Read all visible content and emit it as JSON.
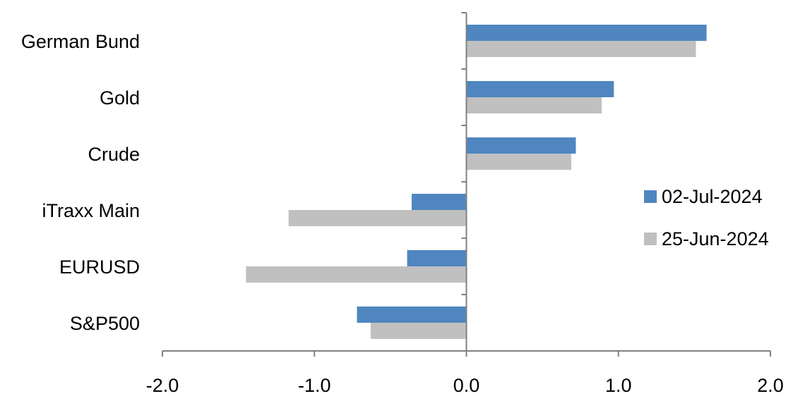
{
  "chart_data": {
    "type": "bar",
    "orientation": "horizontal",
    "categories": [
      "German Bund",
      "Gold",
      "Crude",
      "iTraxx Main",
      "EURUSD",
      "S&P500"
    ],
    "series": [
      {
        "name": "02-Jul-2024",
        "color": "#4F86C0",
        "values": [
          1.58,
          0.97,
          0.72,
          -0.36,
          -0.39,
          -0.72
        ]
      },
      {
        "name": "25-Jun-2024",
        "color": "#C0C0C0",
        "values": [
          1.51,
          0.89,
          0.69,
          -1.17,
          -1.45,
          -0.63
        ]
      }
    ],
    "xlim": [
      -2.0,
      2.0
    ],
    "xticks": [
      "-2.0",
      "-1.0",
      "0.0",
      "1.0",
      "2.0"
    ],
    "title": "",
    "xlabel": "",
    "ylabel": "",
    "grid": false,
    "legend": "right",
    "axis_color": "#808080"
  }
}
